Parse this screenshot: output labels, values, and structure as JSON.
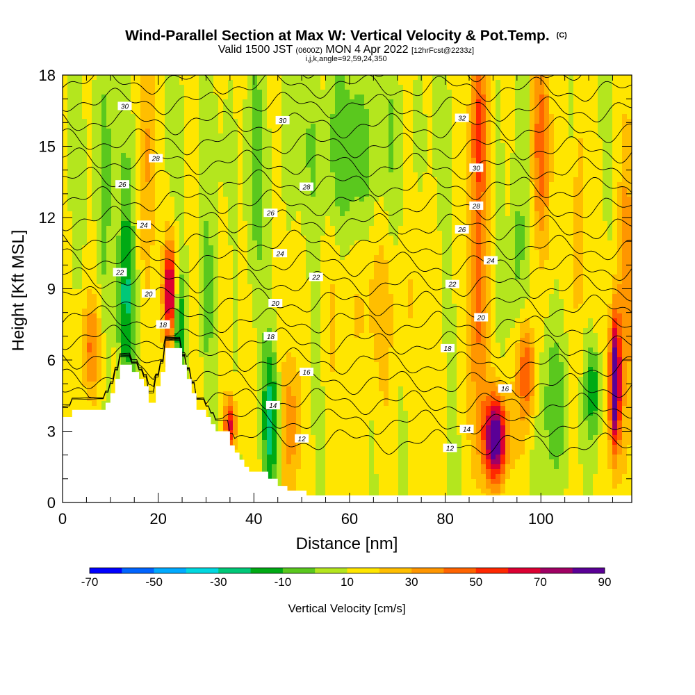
{
  "title": {
    "main": "Wind-Parallel Section at Max W: Vertical Velocity & Pot.Temp.",
    "main_suffix": "(C)",
    "valid_prefix": "Valid 1500 JST",
    "valid_utc": "(0600Z)",
    "valid_date": "MON 4 Apr 2022",
    "fcst": "[12hrFcst@2233z]",
    "indices": "i,j,k,angle=92,59,24,350"
  },
  "colors": {
    "terrain": "#ffffff",
    "contour": "#000000",
    "scale": [
      "#0000ff",
      "#0064ff",
      "#00aaff",
      "#00d8e0",
      "#00c878",
      "#00aa14",
      "#5ac81e",
      "#b4e61e",
      "#ffe600",
      "#ffbe00",
      "#ff9600",
      "#ff6400",
      "#ff2800",
      "#dc0032",
      "#a00064",
      "#5a0096"
    ]
  },
  "chart_data": {
    "type": "heatmap",
    "xlabel": "Distance [nm]",
    "ylabel": "Height [Kft MSL]",
    "xlim": [
      0,
      119
    ],
    "ylim": [
      0,
      18
    ],
    "x_ticks": [
      0,
      20,
      40,
      60,
      80,
      100
    ],
    "y_ticks": [
      0,
      3,
      6,
      9,
      12,
      15,
      18
    ],
    "grid": false,
    "colorbar": {
      "label": "Vertical Velocity [cm/s]",
      "ticks": [
        -70,
        -50,
        -30,
        -10,
        10,
        30,
        50,
        70,
        90
      ],
      "min": -70,
      "max": 90,
      "step": 10
    },
    "terrain_profile": [
      [
        0,
        3.6
      ],
      [
        2,
        3.6
      ],
      [
        2,
        3.9
      ],
      [
        9,
        3.9
      ],
      [
        9,
        4.2
      ],
      [
        10,
        4.2
      ],
      [
        10,
        4.6
      ],
      [
        11,
        4.6
      ],
      [
        11,
        5.2
      ],
      [
        12,
        5.2
      ],
      [
        12,
        5.8
      ],
      [
        14.5,
        5.8
      ],
      [
        14.5,
        5.5
      ],
      [
        16,
        5.5
      ],
      [
        16,
        5.2
      ],
      [
        17,
        5.2
      ],
      [
        17,
        4.9
      ],
      [
        18,
        4.9
      ],
      [
        18,
        4.2
      ],
      [
        19.5,
        4.2
      ],
      [
        19.5,
        4.9
      ],
      [
        20.5,
        4.9
      ],
      [
        20.5,
        5.5
      ],
      [
        21.5,
        5.5
      ],
      [
        21.5,
        6.5
      ],
      [
        25,
        6.5
      ],
      [
        25,
        5.8
      ],
      [
        26,
        5.8
      ],
      [
        26,
        5.2
      ],
      [
        27,
        5.2
      ],
      [
        27,
        4.6
      ],
      [
        28,
        4.6
      ],
      [
        28,
        3.9
      ],
      [
        30,
        3.9
      ],
      [
        30,
        3.6
      ],
      [
        31,
        3.6
      ],
      [
        31,
        3.3
      ],
      [
        32,
        3.3
      ],
      [
        32,
        3.0
      ],
      [
        35,
        3.0
      ],
      [
        35,
        2.4
      ],
      [
        36,
        2.4
      ],
      [
        36,
        2.1
      ],
      [
        37,
        2.1
      ],
      [
        37,
        1.8
      ],
      [
        38,
        1.8
      ],
      [
        38,
        1.5
      ],
      [
        39,
        1.5
      ],
      [
        39,
        1.3
      ],
      [
        43,
        1.3
      ],
      [
        43,
        1.0
      ],
      [
        45,
        1.0
      ],
      [
        45,
        0.7
      ],
      [
        47,
        0.7
      ],
      [
        47,
        0.5
      ],
      [
        51,
        0.5
      ],
      [
        51,
        0.3
      ],
      [
        119,
        0.3
      ]
    ],
    "contour_levels": [
      12,
      13,
      14,
      15,
      16,
      17,
      18,
      19,
      20,
      21,
      22,
      23,
      24,
      25,
      26,
      27,
      28,
      29,
      30,
      31,
      32,
      33
    ],
    "contour_label_values": [
      "12",
      "14",
      "16",
      "18",
      "20",
      "22",
      "24",
      "26",
      "28",
      "30",
      "32"
    ],
    "contour_labels": [
      {
        "text": "30",
        "x": 13,
        "y": 16.7
      },
      {
        "text": "28",
        "x": 19.5,
        "y": 14.5
      },
      {
        "text": "26",
        "x": 12.5,
        "y": 13.4
      },
      {
        "text": "24",
        "x": 17,
        "y": 11.7
      },
      {
        "text": "22",
        "x": 12,
        "y": 9.7
      },
      {
        "text": "20",
        "x": 18,
        "y": 8.8
      },
      {
        "text": "18",
        "x": 21,
        "y": 7.5
      },
      {
        "text": "30",
        "x": 46,
        "y": 16.1
      },
      {
        "text": "28",
        "x": 51,
        "y": 13.3
      },
      {
        "text": "26",
        "x": 43.5,
        "y": 12.2
      },
      {
        "text": "24",
        "x": 45.5,
        "y": 10.5
      },
      {
        "text": "22",
        "x": 53,
        "y": 9.5
      },
      {
        "text": "20",
        "x": 44.5,
        "y": 8.4
      },
      {
        "text": "18",
        "x": 43.5,
        "y": 7.0
      },
      {
        "text": "16",
        "x": 51,
        "y": 5.5
      },
      {
        "text": "14",
        "x": 44,
        "y": 4.1
      },
      {
        "text": "12",
        "x": 50,
        "y": 2.7
      },
      {
        "text": "32",
        "x": 83.5,
        "y": 16.2
      },
      {
        "text": "30",
        "x": 86.5,
        "y": 14.1
      },
      {
        "text": "28",
        "x": 86.5,
        "y": 12.5
      },
      {
        "text": "26",
        "x": 83.5,
        "y": 11.5
      },
      {
        "text": "24",
        "x": 89.5,
        "y": 10.2
      },
      {
        "text": "22",
        "x": 81.5,
        "y": 9.2
      },
      {
        "text": "20",
        "x": 87.5,
        "y": 7.8
      },
      {
        "text": "18",
        "x": 80.5,
        "y": 6.5
      },
      {
        "text": "16",
        "x": 92.5,
        "y": 4.8
      },
      {
        "text": "14",
        "x": 84.5,
        "y": 3.1
      },
      {
        "text": "12",
        "x": 81,
        "y": 2.3
      }
    ],
    "velocity_features": [
      {
        "x": 13,
        "y": 8.5,
        "sx": 1.3,
        "sy": 3.0,
        "amp": -32
      },
      {
        "x": 22.5,
        "y": 8.8,
        "sx": 1.0,
        "sy": 1.5,
        "amp": 70
      },
      {
        "x": 24.2,
        "y": 7.6,
        "sx": 0.9,
        "sy": 1.4,
        "amp": -38
      },
      {
        "x": 6,
        "y": 6.5,
        "sx": 1.5,
        "sy": 1.5,
        "amp": 30
      },
      {
        "x": 35,
        "y": 3.3,
        "sx": 0.9,
        "sy": 0.8,
        "amp": 50
      },
      {
        "x": 43.5,
        "y": 3.5,
        "sx": 1.2,
        "sy": 2.2,
        "amp": -35
      },
      {
        "x": 47.5,
        "y": 3.2,
        "sx": 1.4,
        "sy": 2.0,
        "amp": 25
      },
      {
        "x": 90.5,
        "y": 2.7,
        "sx": 1.8,
        "sy": 1.3,
        "amp": 85
      },
      {
        "x": 87,
        "y": 9.0,
        "sx": 1.3,
        "sy": 4.0,
        "amp": 35
      },
      {
        "x": 87,
        "y": 16.0,
        "sx": 1.3,
        "sy": 2.5,
        "amp": 40
      },
      {
        "x": 97,
        "y": 5.5,
        "sx": 1.5,
        "sy": 1.5,
        "amp": 40
      },
      {
        "x": 103,
        "y": 4.2,
        "sx": 2.2,
        "sy": 2.5,
        "amp": -20
      },
      {
        "x": 111,
        "y": 4.7,
        "sx": 1.1,
        "sy": 1.4,
        "amp": -30
      },
      {
        "x": 115.5,
        "y": 5.0,
        "sx": 0.8,
        "sy": 2.0,
        "amp": 90
      },
      {
        "x": 118,
        "y": 10.0,
        "sx": 1.2,
        "sy": 5.0,
        "amp": 30
      },
      {
        "x": 60,
        "y": 14.5,
        "sx": 6,
        "sy": 3.0,
        "amp": -15
      },
      {
        "x": 65,
        "y": 8.5,
        "sx": 7,
        "sy": 2.5,
        "amp": 12
      },
      {
        "x": 9,
        "y": 13.5,
        "sx": 1.0,
        "sy": 4.5,
        "amp": -18
      },
      {
        "x": 30,
        "y": 8.5,
        "sx": 1.0,
        "sy": 2.5,
        "amp": -20
      },
      {
        "x": 100,
        "y": 15,
        "sx": 1.5,
        "sy": 3.0,
        "amp": 35
      },
      {
        "x": 108,
        "y": 12.0,
        "sx": 1.0,
        "sy": 4.0,
        "amp": 22
      },
      {
        "x": 95,
        "y": 10.0,
        "sx": 1.2,
        "sy": 3.0,
        "amp": -18
      },
      {
        "x": 40,
        "y": 13.0,
        "sx": 1.5,
        "sy": 4.0,
        "amp": -12
      },
      {
        "x": 18,
        "y": 15.0,
        "sx": 1.3,
        "sy": 3.5,
        "amp": 20
      }
    ]
  }
}
